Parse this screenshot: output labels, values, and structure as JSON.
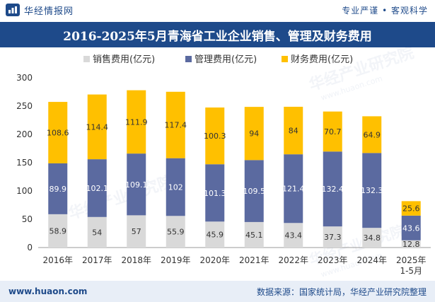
{
  "header": {
    "brand_name": "华经情报网",
    "slogan": "专业严谨 • 客观科学"
  },
  "footer": {
    "url": "www.huaon.com",
    "source": "数据来源：国家统计局，华经产业研究院整理"
  },
  "watermark": "华经产业研究院",
  "watermark_url": "www.huaon.com",
  "colors": {
    "brand": "#1e4a8a",
    "sales": "#d9d9d9",
    "admin": "#5b6aa0",
    "finance": "#ffc000"
  },
  "chart_data": {
    "type": "bar",
    "stacked": true,
    "title": "2016-2025年5月青海省工业企业销售、管理及财务费用",
    "categories": [
      "2016年",
      "2017年",
      "2018年",
      "2019年",
      "2020年",
      "2021年",
      "2022年",
      "2023年",
      "2024年",
      "2025年\n1-5月"
    ],
    "series": [
      {
        "name": "销售费用(亿元)",
        "values": [
          58.9,
          54,
          57,
          55.9,
          45.9,
          45.1,
          43.4,
          37.3,
          34.8,
          12.8
        ]
      },
      {
        "name": "管理费用(亿元)",
        "values": [
          89.9,
          102.1,
          109.1,
          102,
          101.3,
          109.5,
          121.4,
          132.4,
          132.3,
          43.6
        ]
      },
      {
        "name": "财务费用(亿元)",
        "values": [
          108.6,
          114.4,
          111.9,
          117.4,
          100.3,
          94,
          84,
          70.7,
          64.9,
          25.6
        ]
      }
    ],
    "ylim": [
      0,
      300
    ],
    "yticks": [
      0,
      50,
      100,
      150,
      200,
      250,
      300
    ],
    "xlabel": "",
    "ylabel": "",
    "legend": "top-center"
  }
}
